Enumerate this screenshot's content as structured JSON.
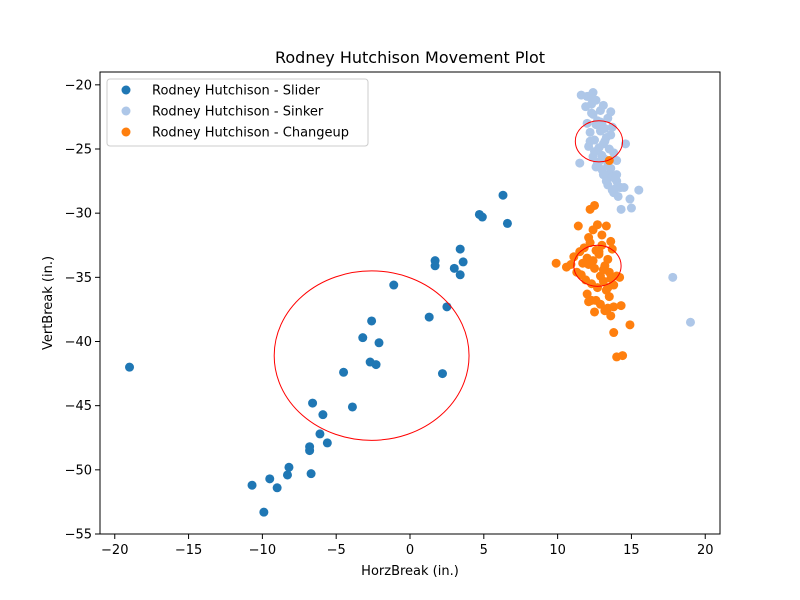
{
  "chart_data": {
    "type": "scatter",
    "title": "Rodney Hutchison Movement Plot",
    "xlabel": "HorzBreak (in.)",
    "ylabel": "VertBreak (in.)",
    "xlim": [
      -21,
      21
    ],
    "ylim": [
      -55,
      -19
    ],
    "xticks": [
      -20,
      -15,
      -10,
      -5,
      0,
      5,
      10,
      15,
      20
    ],
    "yticks": [
      -55,
      -50,
      -45,
      -40,
      -35,
      -30,
      -25,
      -20
    ],
    "xtick_labels": [
      "−20",
      "−15",
      "−10",
      "−5",
      "0",
      "5",
      "10",
      "15",
      "20"
    ],
    "ytick_labels": [
      "−55",
      "−50",
      "−45",
      "−40",
      "−35",
      "−30",
      "−25",
      "−20"
    ],
    "grid": false,
    "legend_position": "top-left",
    "series": [
      {
        "name": "Rodney Hutchison - Slider",
        "color": "#1f77b4",
        "x": [
          -19.0,
          -10.7,
          -9.9,
          -9.5,
          -9.0,
          -8.3,
          -8.2,
          -6.8,
          -6.8,
          -6.7,
          -6.6,
          -6.1,
          -5.9,
          -5.6,
          -4.5,
          -3.9,
          -3.2,
          -2.7,
          -2.6,
          -2.3,
          -2.1,
          -1.1,
          1.3,
          1.7,
          1.7,
          2.5,
          3.0,
          3.4,
          3.4,
          3.6,
          4.7,
          4.9,
          6.3,
          6.6,
          2.2
        ],
        "y": [
          -42.0,
          -51.2,
          -53.3,
          -50.7,
          -51.4,
          -50.4,
          -49.8,
          -48.5,
          -48.2,
          -50.3,
          -44.8,
          -47.2,
          -45.7,
          -47.9,
          -42.4,
          -45.1,
          -39.7,
          -41.6,
          -38.4,
          -41.8,
          -40.1,
          -35.6,
          -38.1,
          -33.7,
          -34.1,
          -37.3,
          -34.3,
          -32.8,
          -34.8,
          -33.8,
          -30.1,
          -30.3,
          -28.6,
          -30.8,
          -42.5
        ]
      },
      {
        "name": "Rodney Hutchison - Sinker",
        "color": "#aec7e8",
        "x": [
          11.6,
          11.9,
          12.1,
          12.3,
          12.4,
          12.6,
          12.7,
          12.9,
          13.1,
          13.2,
          13.4,
          13.6,
          12.0,
          12.2,
          12.5,
          12.8,
          13.0,
          13.3,
          13.5,
          13.7,
          12.1,
          12.4,
          12.7,
          13.0,
          13.2,
          13.5,
          13.8,
          12.3,
          12.6,
          12.9,
          13.1,
          13.4,
          13.7,
          14.0,
          12.5,
          12.8,
          13.1,
          13.4,
          13.7,
          14.0,
          14.3,
          12.9,
          13.2,
          13.6,
          13.9,
          14.2,
          12.6,
          13.3,
          13.8,
          14.1,
          14.5,
          14.9,
          11.5,
          12.4,
          12.2,
          14.3,
          15.0,
          15.5,
          14.6,
          17.8,
          19.0,
          13.6,
          14.0,
          12.0,
          13.0,
          13.9
        ],
        "y": [
          -20.8,
          -21.7,
          -20.9,
          -21.5,
          -22.3,
          -21.2,
          -22.8,
          -22.0,
          -21.6,
          -23.4,
          -22.6,
          -23.9,
          -23.0,
          -23.7,
          -24.3,
          -24.9,
          -25.5,
          -24.1,
          -25.0,
          -23.3,
          -24.8,
          -25.6,
          -26.1,
          -26.6,
          -25.8,
          -26.9,
          -25.3,
          -22.2,
          -23.1,
          -23.6,
          -24.6,
          -26.3,
          -27.2,
          -27.5,
          -25.2,
          -26.0,
          -27.0,
          -27.8,
          -28.2,
          -27.0,
          -28.0,
          -22.9,
          -24.4,
          -26.5,
          -28.1,
          -28.0,
          -26.4,
          -27.5,
          -28.4,
          -28.7,
          -28.0,
          -28.9,
          -26.1,
          -20.6,
          -24.4,
          -29.7,
          -29.6,
          -28.2,
          -24.6,
          -35.0,
          -38.5,
          -22.1,
          -25.9,
          -20.9,
          -23.0,
          -27.3
        ]
      },
      {
        "name": "Rodney Hutchison - Changeup",
        "color": "#ff7f0e",
        "x": [
          9.9,
          10.6,
          10.9,
          11.1,
          11.3,
          11.5,
          11.6,
          11.8,
          11.9,
          12.0,
          12.1,
          12.2,
          12.3,
          12.4,
          12.5,
          12.6,
          12.7,
          12.8,
          12.9,
          13.0,
          13.1,
          13.2,
          13.3,
          13.4,
          13.5,
          13.6,
          13.7,
          13.8,
          14.0,
          14.2,
          12.1,
          12.4,
          12.7,
          13.0,
          13.3,
          13.6,
          11.7,
          12.0,
          12.3,
          12.6,
          12.9,
          13.2,
          13.5,
          13.8,
          12.2,
          12.5,
          12.8,
          13.1,
          13.4,
          11.4,
          12.1,
          12.5,
          13.4,
          13.6,
          13.8,
          14.3,
          14.9,
          14.0,
          14.4,
          13.5
        ],
        "y": [
          -33.9,
          -34.2,
          -34.0,
          -33.4,
          -34.6,
          -33.0,
          -34.8,
          -32.7,
          -35.2,
          -33.5,
          -34.0,
          -32.3,
          -35.5,
          -33.7,
          -34.3,
          -32.9,
          -35.8,
          -33.2,
          -34.9,
          -32.5,
          -35.3,
          -34.1,
          -36.0,
          -33.6,
          -34.6,
          -35.1,
          -32.8,
          -35.6,
          -34.9,
          -35.0,
          -31.9,
          -31.3,
          -30.9,
          -31.7,
          -31.0,
          -32.2,
          -33.9,
          -36.3,
          -36.8,
          -36.8,
          -37.1,
          -37.6,
          -36.5,
          -37.3,
          -29.7,
          -29.4,
          -33.0,
          -34.4,
          -35.8,
          -31.0,
          -36.9,
          -37.7,
          -37.4,
          -38.0,
          -39.3,
          -37.2,
          -38.7,
          -41.2,
          -41.1,
          -25.9
        ]
      }
    ],
    "annotations": [
      {
        "type": "ellipse",
        "color": "#ff0000",
        "cx": -2.6,
        "cy": -41.1,
        "rx": 6.6,
        "ry": 6.6
      },
      {
        "type": "ellipse",
        "color": "#ff0000",
        "cx": 12.8,
        "cy": -24.4,
        "rx": 1.6,
        "ry": 1.6
      },
      {
        "type": "ellipse",
        "color": "#ff0000",
        "cx": 12.7,
        "cy": -34.1,
        "rx": 1.6,
        "ry": 1.6
      }
    ]
  }
}
